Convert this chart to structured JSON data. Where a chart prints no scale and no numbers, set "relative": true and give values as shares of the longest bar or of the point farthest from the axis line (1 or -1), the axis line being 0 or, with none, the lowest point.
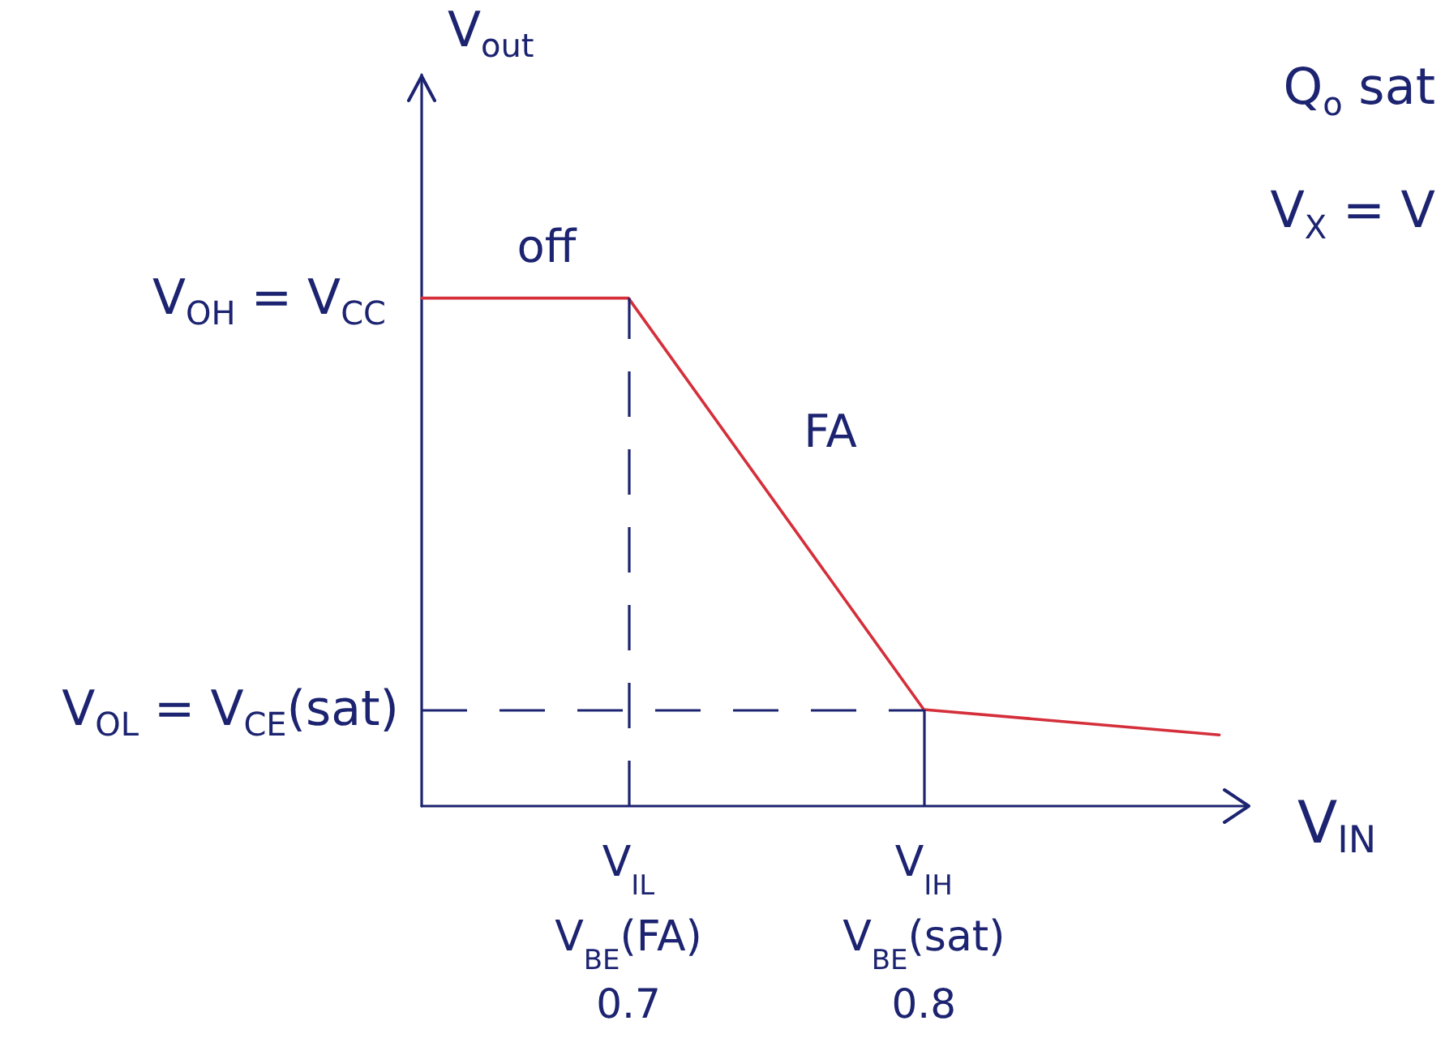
{
  "chart_data": {
    "type": "line",
    "relative": true,
    "xlabel": "V$_{IN}$",
    "ylabel": "V$_{out}$",
    "x": [
      0.63,
      0.7,
      0.8,
      0.9
    ],
    "series": [
      {
        "color": "#d42f3a",
        "values": [
          1,
          1,
          0.19,
          0.14
        ]
      }
    ],
    "xlim": [
      0.63,
      0.91
    ],
    "xticks": [
      0.7,
      0.8
    ],
    "ref_lines": [
      {
        "axis": "y",
        "value": 0.19,
        "label": "V$_{OL}$ = V$_{CE}$(sat)",
        "line_style": "dashed",
        "color": "#1c2370"
      },
      {
        "axis": "x",
        "value": 0.7,
        "label": "V$_{IL}$\nV$_{BE}$(FA)",
        "line_style": "dashed",
        "color": "#1c2370"
      },
      {
        "axis": "x",
        "value": 0.8,
        "label": "V$_{IH}$\nV$_{BE}$(sat)",
        "line_style": "solid",
        "color": "#1c2370"
      }
    ],
    "annotations": [
      {
        "text": "V$_{OH}$ = V$_{CC}$",
        "x": 0.63,
        "y": 1
      },
      "off",
      "FA",
      "Q$_{o}$ sat",
      "V$_{X}$ = V"
    ],
    "marker": "none"
  }
}
